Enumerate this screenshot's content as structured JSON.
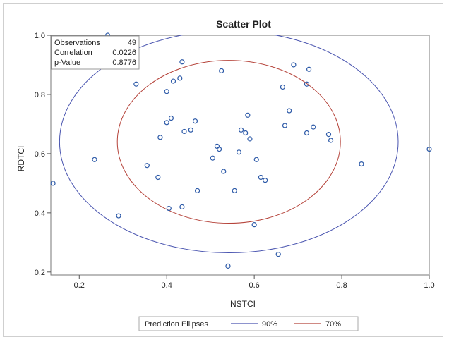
{
  "chart_data": {
    "type": "scatter",
    "title": "Scatter Plot",
    "xlabel": "NSTCI",
    "ylabel": "RDTCI",
    "xlim": [
      0.135,
      1.0
    ],
    "ylim": [
      0.19,
      1.0
    ],
    "xticks": [
      "0.2",
      "0.4",
      "0.6",
      "0.8",
      "1.0"
    ],
    "yticks": [
      "0.2",
      "0.4",
      "0.6",
      "0.8",
      "1.0"
    ],
    "grid": false,
    "stats": [
      {
        "label": "Observations",
        "value": "49"
      },
      {
        "label": "Correlation",
        "value": "0.0226"
      },
      {
        "label": "p-Value",
        "value": "0.8776"
      }
    ],
    "points": [
      [
        0.14,
        0.5
      ],
      [
        0.235,
        0.58
      ],
      [
        0.265,
        1.0
      ],
      [
        0.29,
        0.39
      ],
      [
        0.33,
        0.835
      ],
      [
        0.355,
        0.56
      ],
      [
        0.38,
        0.52
      ],
      [
        0.385,
        0.655
      ],
      [
        0.4,
        0.81
      ],
      [
        0.4,
        0.705
      ],
      [
        0.405,
        0.415
      ],
      [
        0.41,
        0.72
      ],
      [
        0.415,
        0.845
      ],
      [
        0.43,
        0.855
      ],
      [
        0.435,
        0.91
      ],
      [
        0.435,
        0.42
      ],
      [
        0.44,
        0.675
      ],
      [
        0.455,
        0.68
      ],
      [
        0.465,
        0.71
      ],
      [
        0.47,
        0.475
      ],
      [
        0.505,
        0.585
      ],
      [
        0.515,
        0.625
      ],
      [
        0.52,
        0.615
      ],
      [
        0.525,
        0.88
      ],
      [
        0.53,
        0.54
      ],
      [
        0.54,
        0.22
      ],
      [
        0.555,
        0.475
      ],
      [
        0.565,
        0.605
      ],
      [
        0.57,
        0.68
      ],
      [
        0.58,
        0.67
      ],
      [
        0.585,
        0.73
      ],
      [
        0.59,
        0.65
      ],
      [
        0.6,
        0.36
      ],
      [
        0.605,
        0.58
      ],
      [
        0.615,
        0.52
      ],
      [
        0.625,
        0.51
      ],
      [
        0.655,
        0.26
      ],
      [
        0.665,
        0.825
      ],
      [
        0.67,
        0.695
      ],
      [
        0.68,
        0.745
      ],
      [
        0.69,
        0.9
      ],
      [
        0.72,
        0.835
      ],
      [
        0.72,
        0.67
      ],
      [
        0.725,
        0.885
      ],
      [
        0.735,
        0.69
      ],
      [
        0.77,
        0.665
      ],
      [
        0.775,
        0.645
      ],
      [
        0.845,
        0.565
      ],
      [
        1.0,
        0.615
      ]
    ],
    "ellipses": [
      {
        "level": "90%",
        "cx": 0.542,
        "cy": 0.64,
        "rx": 0.387,
        "ry": 0.375,
        "color": "#4a55b0"
      },
      {
        "level": "70%",
        "cx": 0.542,
        "cy": 0.64,
        "rx": 0.255,
        "ry": 0.275,
        "color": "#b5433a"
      }
    ],
    "legend": {
      "title": "Prediction Ellipses",
      "entries": [
        {
          "label": "90%",
          "color": "#4a55b0"
        },
        {
          "label": "70%",
          "color": "#b5433a"
        }
      ],
      "position": "bottom"
    },
    "marker_color": "#2d5aa8"
  }
}
